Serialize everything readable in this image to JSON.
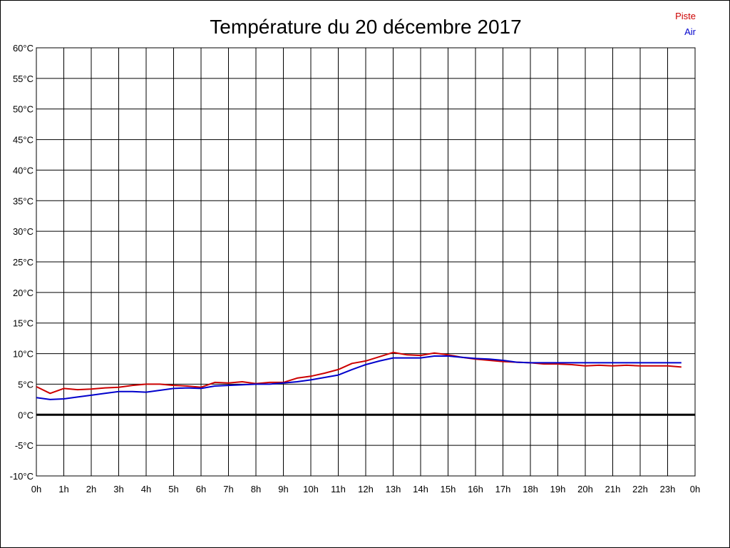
{
  "chart_data": {
    "type": "line",
    "title": "Température du 20 décembre 2017",
    "xlabel": "",
    "ylabel": "",
    "ylim": [
      -10,
      60
    ],
    "xlim": [
      0,
      24
    ],
    "y_ticks": [
      "60°C",
      "55°C",
      "50°C",
      "45°C",
      "40°C",
      "35°C",
      "30°C",
      "25°C",
      "20°C",
      "15°C",
      "10°C",
      "5°C",
      "0°C",
      "-5°C",
      "-10°C"
    ],
    "x_ticks": [
      "0h",
      "1h",
      "2h",
      "3h",
      "4h",
      "5h",
      "6h",
      "7h",
      "8h",
      "9h",
      "10h",
      "11h",
      "12h",
      "13h",
      "14h",
      "15h",
      "16h",
      "17h",
      "18h",
      "19h",
      "20h",
      "21h",
      "22h",
      "23h",
      "0h"
    ],
    "grid": true,
    "legend_position": "top-right",
    "x": [
      0,
      0.5,
      1,
      1.5,
      2,
      2.5,
      3,
      3.5,
      4,
      4.5,
      5,
      5.5,
      6,
      6.5,
      7,
      7.5,
      8,
      8.5,
      9,
      9.5,
      10,
      10.5,
      11,
      11.5,
      12,
      12.5,
      13,
      13.5,
      14,
      14.5,
      15,
      15.5,
      16,
      16.5,
      17,
      17.5,
      18,
      18.5,
      19,
      19.5,
      20,
      20.5,
      21,
      21.5,
      22,
      22.5,
      23,
      23.5
    ],
    "series": [
      {
        "name": "Piste",
        "color": "#cc0000",
        "values": [
          4.6,
          3.5,
          4.3,
          4.1,
          4.2,
          4.4,
          4.5,
          4.8,
          5.0,
          5.0,
          4.8,
          4.7,
          4.5,
          5.3,
          5.2,
          5.4,
          5.1,
          5.3,
          5.3,
          6.0,
          6.3,
          6.8,
          7.4,
          8.4,
          8.8,
          9.5,
          10.2,
          9.8,
          9.7,
          10.1,
          9.8,
          9.4,
          9.1,
          8.9,
          8.7,
          8.6,
          8.5,
          8.3,
          8.3,
          8.2,
          8.0,
          8.1,
          8.0,
          8.1,
          8.0,
          8.0,
          8.0,
          7.8
        ]
      },
      {
        "name": "Air",
        "color": "#0000cc",
        "values": [
          2.8,
          2.5,
          2.6,
          2.9,
          3.2,
          3.5,
          3.8,
          3.8,
          3.7,
          4.0,
          4.3,
          4.4,
          4.3,
          4.7,
          4.8,
          4.9,
          5.0,
          5.0,
          5.2,
          5.4,
          5.7,
          6.1,
          6.5,
          7.4,
          8.2,
          8.8,
          9.3,
          9.3,
          9.3,
          9.6,
          9.6,
          9.4,
          9.2,
          9.1,
          8.9,
          8.6,
          8.5,
          8.5,
          8.5,
          8.5,
          8.5,
          8.5,
          8.5,
          8.5,
          8.5,
          8.5,
          8.5,
          8.5
        ]
      }
    ]
  }
}
